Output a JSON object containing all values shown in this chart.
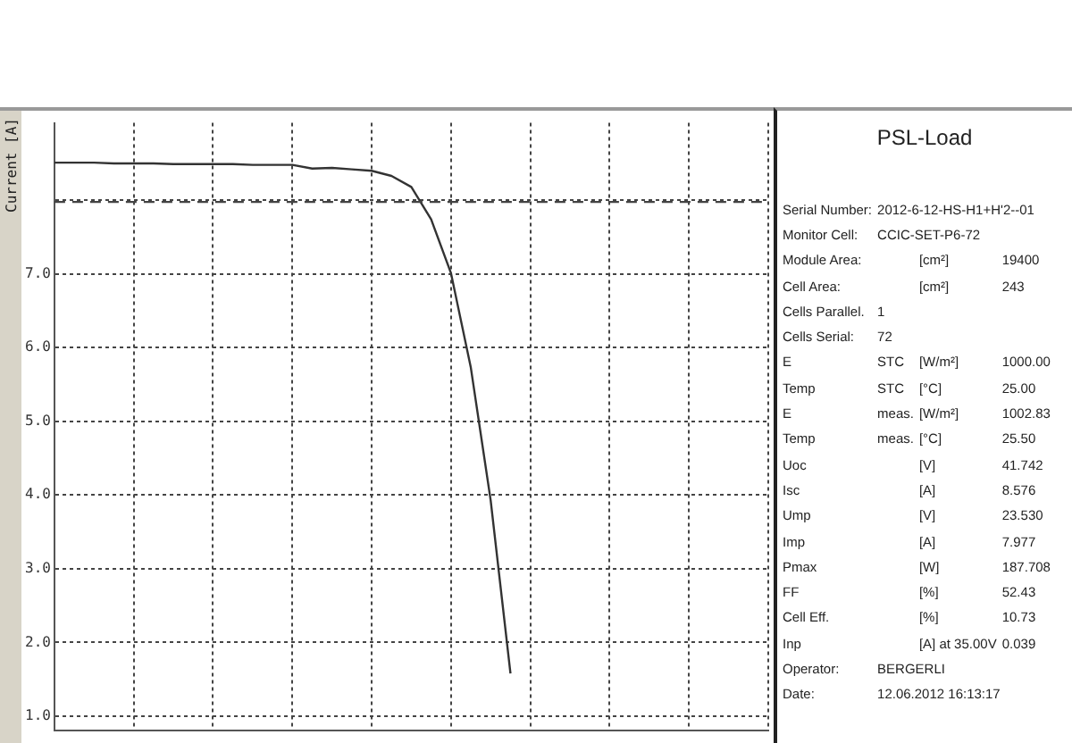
{
  "chart_data": [
    {
      "type": "line",
      "ylabel": "Current [A]",
      "categories": [
        null,
        null,
        null,
        null,
        null,
        null,
        null,
        null,
        null,
        null,
        null,
        null,
        null,
        null,
        null,
        null,
        null,
        null,
        null,
        null,
        null,
        null,
        null,
        null,
        null,
        null,
        null,
        null,
        null,
        null,
        null,
        null,
        null,
        null,
        null,
        null,
        null
      ],
      "series": [
        {
          "color": "#333333",
          "values": [
            8.51,
            8.51,
            8.51,
            8.5,
            8.5,
            8.5,
            8.49,
            8.49,
            8.49,
            8.49,
            8.48,
            8.48,
            8.48,
            8.43,
            8.44,
            8.42,
            8.4,
            8.33,
            8.18,
            7.74,
            7.01,
            5.73,
            3.93,
            1.58,
            null,
            null,
            null,
            null,
            null,
            null,
            null,
            null,
            null,
            null,
            null,
            null,
            null
          ]
        }
      ],
      "ylim": [
        0.8,
        9.05
      ],
      "yticks": [
        {
          "value": 1,
          "label": "1.0"
        },
        {
          "value": 2,
          "label": "2.0"
        },
        {
          "value": 3,
          "label": "3.0"
        },
        {
          "value": 4,
          "label": "4.0"
        },
        {
          "value": 5,
          "label": "5.0"
        },
        {
          "value": 6,
          "label": "6.0"
        },
        {
          "value": 7,
          "label": "7.0"
        },
        {
          "value": 8,
          "label": null
        }
      ],
      "ref_lines": [
        {
          "axis": "y",
          "value": 7.977,
          "color": "#444444",
          "line_style": "dashed"
        }
      ],
      "grid": true,
      "legend": false,
      "marker": "none",
      "line_style": "solid",
      "tick_labels": "y"
    },
    {
      "type": "other",
      "title": "PSL-Load",
      "annotations": [
        "Serial Number:\t2012-6-12-HS-H1+H'2--01",
        "Monitor Cell:\tCCIC-SET-P6-72",
        "Module Area:\t[cm²]\t19400",
        "Cell Area:\t[cm²]\t243",
        "Cells Parallel.\t1",
        "Cells Serial:\t72",
        "E\tSTC\t[W/m²]\t1000.00",
        "Temp\tSTC\t[°C]\t25.00",
        "E\tmeas.\t[W/m²]\t1002.83",
        "Temp\tmeas.\t[°C]\t25.50",
        "Uoc\t[V]\t41.742",
        "Isc\t[A]\t8.576",
        "Ump\t[V]\t23.530",
        "Imp\t[A]\t7.977",
        "Pmax\t[W]\t187.708",
        "FF\t[%]\t52.43",
        "Cell Eff.\t[%]\t10.73",
        "Inp\t[A] at 35.00V\t0.039",
        "Operator:\tBERGERLI",
        "Date:\t12.06.2012 16:13:17"
      ]
    }
  ]
}
